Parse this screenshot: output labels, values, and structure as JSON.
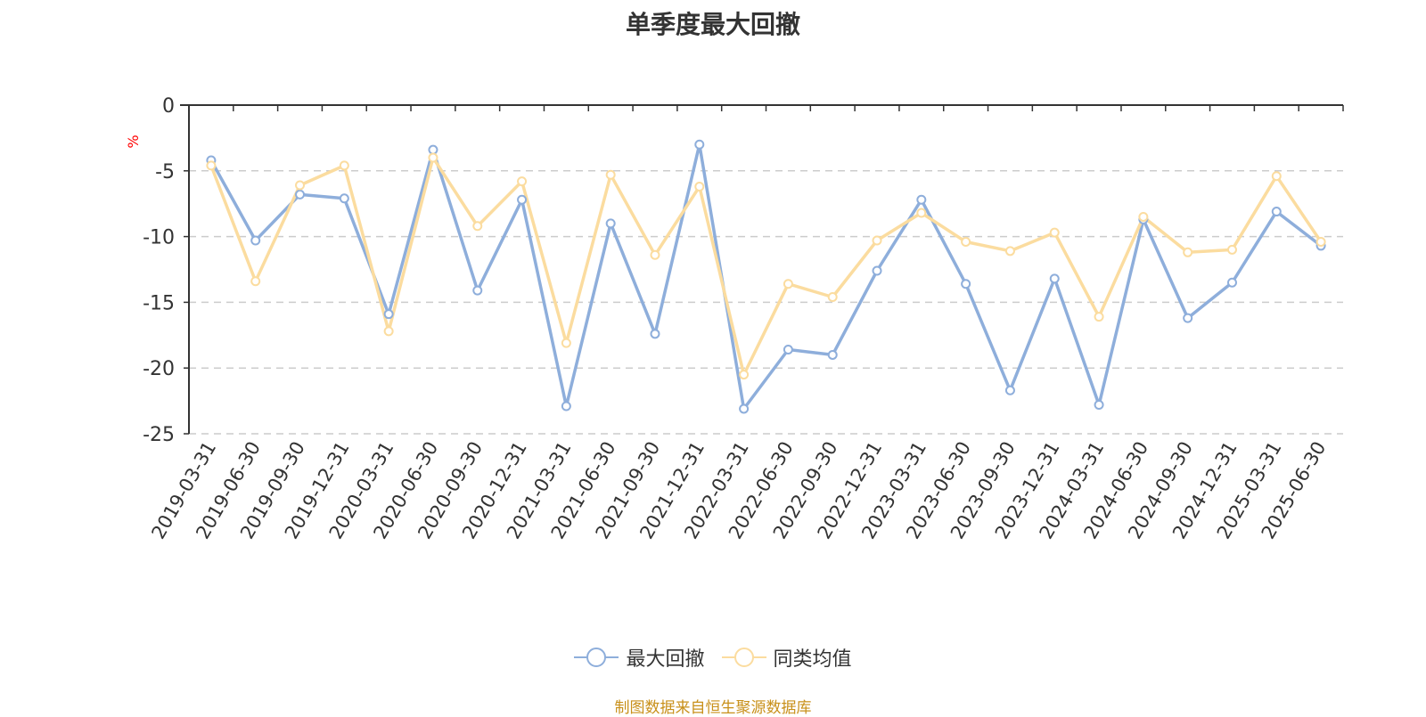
{
  "chart_data": {
    "type": "line",
    "title": "单季度最大回撤",
    "ylabel": "%",
    "ylim": [
      -25,
      0
    ],
    "yticks": [
      0,
      -5,
      -10,
      -15,
      -20,
      -25
    ],
    "grid": true,
    "legend_position": "bottom-center",
    "categories": [
      "2019-03-31",
      "2019-06-30",
      "2019-09-30",
      "2019-12-31",
      "2020-03-31",
      "2020-06-30",
      "2020-09-30",
      "2020-12-31",
      "2021-03-31",
      "2021-06-30",
      "2021-09-30",
      "2021-12-31",
      "2022-03-31",
      "2022-06-30",
      "2022-09-30",
      "2022-12-31",
      "2023-03-31",
      "2023-06-30",
      "2023-09-30",
      "2023-12-31",
      "2024-03-31",
      "2024-06-30",
      "2024-09-30",
      "2024-12-31",
      "2025-03-31",
      "2025-06-30"
    ],
    "series": [
      {
        "name": "最大回撤",
        "color": "#8eaedb",
        "values": [
          -4.2,
          -10.3,
          -6.8,
          -7.1,
          -15.9,
          -3.4,
          -14.1,
          -7.2,
          -22.9,
          -9.0,
          -17.4,
          -3.0,
          -23.1,
          -18.6,
          -19.0,
          -12.6,
          -7.2,
          -13.6,
          -21.7,
          -13.2,
          -22.8,
          -8.7,
          -16.2,
          -13.5,
          -8.1,
          -10.7
        ]
      },
      {
        "name": "同类均值",
        "color": "#fbdc9f",
        "values": [
          -4.6,
          -13.4,
          -6.1,
          -4.6,
          -17.2,
          -4.0,
          -9.2,
          -5.8,
          -18.1,
          -5.3,
          -11.4,
          -6.2,
          -20.5,
          -13.6,
          -14.6,
          -10.3,
          -8.2,
          -10.4,
          -11.1,
          -9.7,
          -16.1,
          -8.5,
          -11.2,
          -11.0,
          -5.4,
          -10.4
        ]
      }
    ]
  },
  "source_note": "制图数据来自恒生聚源数据库",
  "colors": {
    "axis": "#333333",
    "grid": "#cccccc",
    "ylabel": "#ff0000",
    "source": "#c8901a",
    "title": "#333333"
  }
}
